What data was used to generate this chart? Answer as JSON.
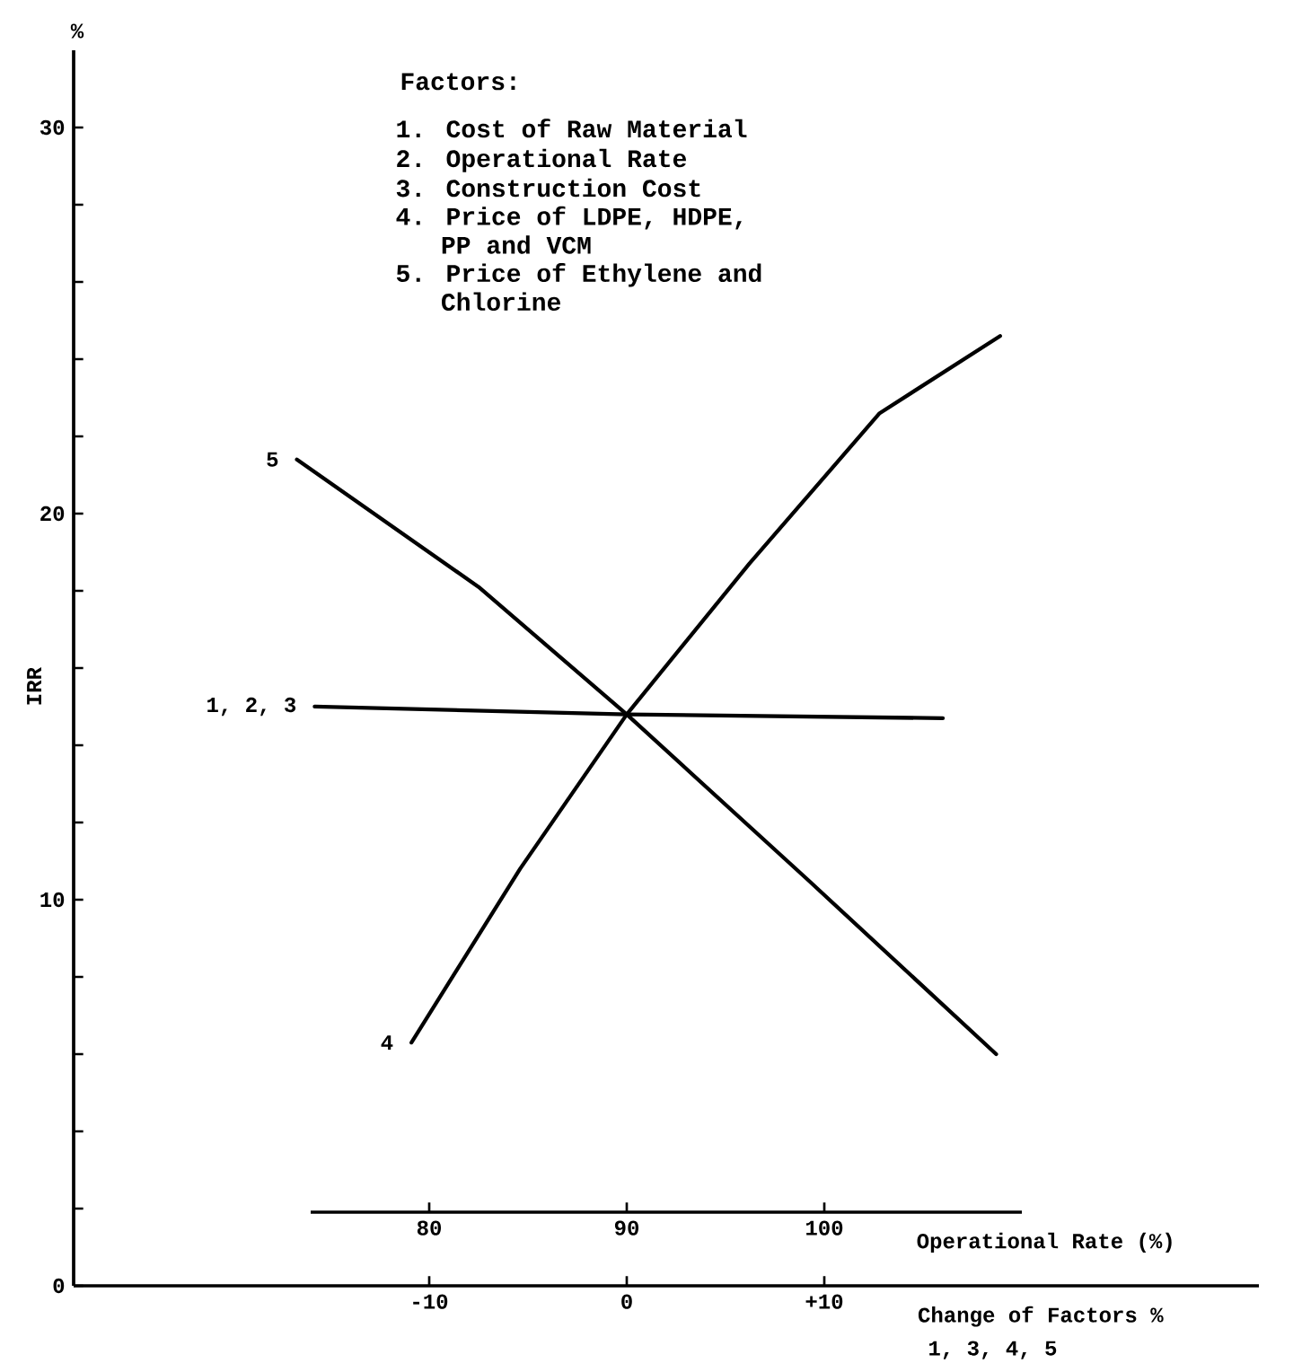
{
  "chart_data": {
    "type": "line",
    "ylabel": "IRR",
    "xlabel": "Change of Factors %",
    "x2label": "Operational Rate (%)",
    "xlim": [
      -28,
      32
    ],
    "xticks": [
      {
        "value": -10,
        "label": "-10"
      },
      0,
      {
        "value": 10,
        "label": "+10"
      }
    ],
    "x2lim": [
      74,
      110
    ],
    "x2ticks": [
      80,
      90,
      100
    ],
    "ylim": [
      0,
      32
    ],
    "yticks": [
      0,
      {
        "value": 2,
        "label": null
      },
      {
        "value": 4,
        "label": null
      },
      {
        "value": 6,
        "label": null
      },
      {
        "value": 8,
        "label": null
      },
      10,
      {
        "value": 12,
        "label": null
      },
      {
        "value": 14,
        "label": null
      },
      {
        "value": 16,
        "label": null
      },
      {
        "value": 18,
        "label": null
      },
      20,
      {
        "value": 22,
        "label": null
      },
      {
        "value": 24,
        "label": null
      },
      {
        "value": 26,
        "label": null
      },
      {
        "value": 28,
        "label": null
      },
      30
    ],
    "series": [
      {
        "name": "5",
        "color": "#000000",
        "x": [
          -16.7,
          -7.5,
          0,
          9.2,
          18.7
        ],
        "values": [
          21.4,
          18.1,
          14.8,
          10.5,
          6.0
        ]
      },
      {
        "name": "1, 2, 3",
        "color": "#000000",
        "x": [
          -15.8,
          0,
          16.0
        ],
        "values": [
          15.0,
          14.8,
          14.7
        ]
      },
      {
        "name": "4",
        "color": "#000000",
        "x": [
          -10.9,
          -5.4,
          0,
          6.2,
          12.8,
          18.9
        ],
        "values": [
          6.3,
          10.8,
          14.8,
          18.7,
          22.6,
          24.6
        ]
      }
    ],
    "annotations": [
      "%",
      "Factors:",
      "1. Cost of Raw Material",
      "2. Operational Rate",
      "3. Construction Cost",
      "4. Price of LDPE, HDPE, PP and VCM",
      "5. Price of Ethylene and Chlorine",
      "1, 3, 4, 5"
    ]
  }
}
